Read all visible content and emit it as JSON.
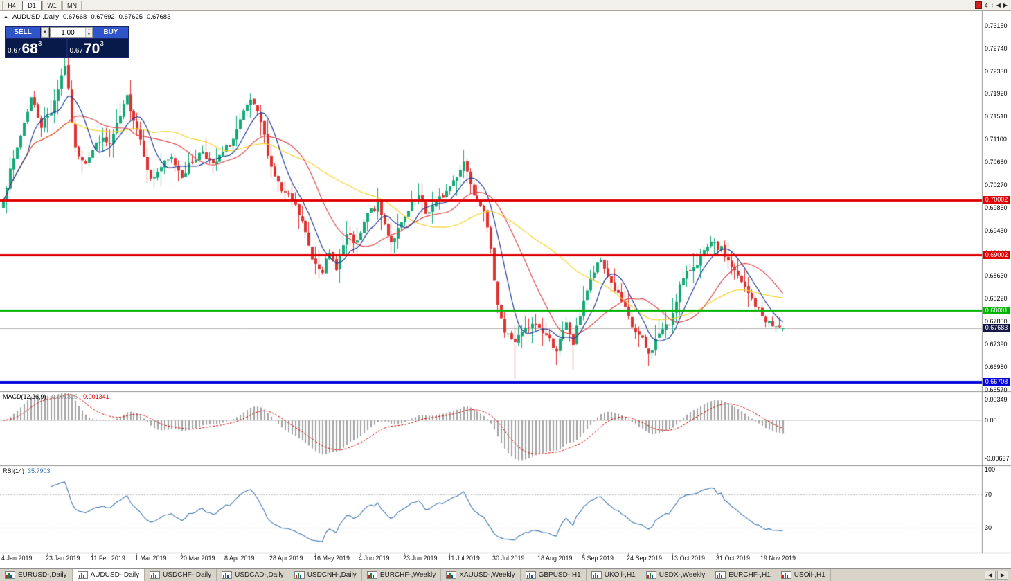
{
  "toolbar": {
    "timeframes": [
      {
        "label": "H4",
        "active": false
      },
      {
        "label": "D1",
        "active": true
      },
      {
        "label": "W1",
        "active": false
      },
      {
        "label": "MN",
        "active": false
      }
    ],
    "right_controls": {
      "bars_count": "4",
      "up_down": "↕",
      "left": "◀",
      "right": "▶"
    }
  },
  "trade_panel": {
    "sell_label": "SELL",
    "buy_label": "BUY",
    "volume": "1.00",
    "icons": {
      "dropdown": "▼",
      "spin_up": "▲",
      "spin_down": "▼"
    },
    "sell_price": {
      "prefix": "0.67",
      "big": "68",
      "sup": "3"
    },
    "buy_price": {
      "prefix": "0.67",
      "big": "70",
      "sup": "3"
    }
  },
  "chart": {
    "title": {
      "indicator_arrow": "▲",
      "symbol": "AUDUSD-,Daily",
      "open": "0.67668",
      "high": "0.67692",
      "low": "0.67625",
      "close": "0.67683"
    },
    "price_scale_labels": [
      "0.73150",
      "0.72740",
      "0.72330",
      "0.71920",
      "0.71510",
      "0.71100",
      "0.70680",
      "0.70270",
      "0.69860",
      "0.69450",
      "0.69040",
      "0.68630",
      "0.68220",
      "0.67800",
      "0.67390",
      "0.66980",
      "0.66570"
    ],
    "current_price": {
      "label": "0.67683",
      "price": 0.67683,
      "badge_color": "#11173f"
    },
    "hlines": [
      {
        "price": 0.70002,
        "label": "0.70002",
        "color": "#e00000",
        "width": 3
      },
      {
        "price": 0.69002,
        "label": "0.69002",
        "color": "#e00000",
        "width": 3
      },
      {
        "price": 0.68001,
        "label": "0.68001",
        "color": "#00b400",
        "width": 3
      },
      {
        "price": 0.66708,
        "label": "0.66708",
        "color": "#0000dc",
        "width": 4
      }
    ],
    "date_labels": [
      "4 Jan 2019",
      "23 Jan 2019",
      "11 Feb 2019",
      "1 Mar 2019",
      "20 Mar 2019",
      "8 Apr 2019",
      "28 Apr 2019",
      "16 May 2019",
      "4 Jun 2019",
      "23 Jun 2019",
      "11 Jul 2019",
      "30 Jul 2019",
      "18 Aug 2019",
      "5 Sep 2019",
      "24 Sep 2019",
      "13 Oct 2019",
      "31 Oct 2019",
      "19 Nov 2019"
    ]
  },
  "macd": {
    "name": "MACD(12,26,9)",
    "value_main": "-0.001825",
    "value_signal": "-0.001341",
    "scale_labels": [
      "0.00349",
      "0.00",
      "-0.00637"
    ]
  },
  "rsi": {
    "name": "RSI(14)",
    "value": "35.7903",
    "scale_labels": [
      "100",
      "70",
      "30"
    ]
  },
  "tabs": {
    "items": [
      {
        "label": "EURUSD-,Daily",
        "active": false
      },
      {
        "label": "AUDUSD-,Daily",
        "active": true
      },
      {
        "label": "USDCHF-,Daily",
        "active": false
      },
      {
        "label": "USDCAD-,Daily",
        "active": false
      },
      {
        "label": "USDCNH-,Daily",
        "active": false
      },
      {
        "label": "EURCHF-,Weekly",
        "active": false
      },
      {
        "label": "XAUUSD-,Weekly",
        "active": false
      },
      {
        "label": "GBPUSD-,H1",
        "active": false
      },
      {
        "label": "UKOil-,H1",
        "active": false
      },
      {
        "label": "USDX-,Weekly",
        "active": false
      },
      {
        "label": "EURCHF-,H1",
        "active": false
      },
      {
        "label": "USOil-,H1",
        "active": false
      }
    ],
    "scroll_left": "◀",
    "scroll_right": "▶"
  },
  "chart_data": {
    "type": "candlestick",
    "symbol": "AUDUSD",
    "timeframe": "Daily",
    "bars": 228,
    "seed": 7,
    "noise": 0.0014,
    "wick": 0.0028,
    "bull_color": "#14a878",
    "bear_color": "#e03131",
    "price_axis": {
      "top": 0.7315,
      "bottom": 0.6657,
      "step": 0.0041
    },
    "close_anchors": [
      [
        0,
        0.7005
      ],
      [
        4,
        0.7095
      ],
      [
        8,
        0.7185
      ],
      [
        11,
        0.7135
      ],
      [
        14,
        0.716
      ],
      [
        18,
        0.7245
      ],
      [
        19,
        0.7195
      ],
      [
        21,
        0.709
      ],
      [
        24,
        0.707
      ],
      [
        28,
        0.711
      ],
      [
        31,
        0.71
      ],
      [
        34,
        0.715
      ],
      [
        36,
        0.7185
      ],
      [
        40,
        0.711
      ],
      [
        43,
        0.7035
      ],
      [
        46,
        0.706
      ],
      [
        49,
        0.7075
      ],
      [
        52,
        0.7045
      ],
      [
        55,
        0.707
      ],
      [
        58,
        0.709
      ],
      [
        61,
        0.706
      ],
      [
        64,
        0.7085
      ],
      [
        67,
        0.711
      ],
      [
        70,
        0.7155
      ],
      [
        72,
        0.718
      ],
      [
        75,
        0.714
      ],
      [
        78,
        0.706
      ],
      [
        81,
        0.7015
      ],
      [
        84,
        0.7
      ],
      [
        87,
        0.696
      ],
      [
        90,
        0.6895
      ],
      [
        93,
        0.6875
      ],
      [
        95,
        0.69
      ],
      [
        97,
        0.688
      ],
      [
        100,
        0.6935
      ],
      [
        103,
        0.692
      ],
      [
        106,
        0.6975
      ],
      [
        109,
        0.699
      ],
      [
        111,
        0.6955
      ],
      [
        113,
        0.6925
      ],
      [
        116,
        0.6955
      ],
      [
        119,
        0.699
      ],
      [
        121,
        0.7005
      ],
      [
        123,
        0.6975
      ],
      [
        126,
        0.6995
      ],
      [
        129,
        0.7015
      ],
      [
        132,
        0.7045
      ],
      [
        134,
        0.707
      ],
      [
        137,
        0.7015
      ],
      [
        140,
        0.6985
      ],
      [
        142,
        0.6905
      ],
      [
        144,
        0.6815
      ],
      [
        146,
        0.676
      ],
      [
        149,
        0.6745
      ],
      [
        152,
        0.6765
      ],
      [
        155,
        0.6775
      ],
      [
        158,
        0.6755
      ],
      [
        161,
        0.673
      ],
      [
        164,
        0.6775
      ],
      [
        166,
        0.674
      ],
      [
        169,
        0.682
      ],
      [
        172,
        0.687
      ],
      [
        174,
        0.689
      ],
      [
        177,
        0.685
      ],
      [
        180,
        0.6815
      ],
      [
        183,
        0.677
      ],
      [
        186,
        0.6745
      ],
      [
        188,
        0.672
      ],
      [
        191,
        0.676
      ],
      [
        194,
        0.6775
      ],
      [
        197,
        0.6845
      ],
      [
        200,
        0.6875
      ],
      [
        203,
        0.6895
      ],
      [
        206,
        0.692
      ],
      [
        209,
        0.691
      ],
      [
        212,
        0.688
      ],
      [
        215,
        0.685
      ],
      [
        218,
        0.682
      ],
      [
        221,
        0.679
      ],
      [
        224,
        0.6772
      ],
      [
        227,
        0.6768
      ]
    ],
    "wick_overrides": [
      [
        18,
        "high",
        0.726
      ],
      [
        149,
        "low",
        0.6676
      ],
      [
        166,
        "low",
        0.6693
      ],
      [
        188,
        "low",
        0.67
      ]
    ],
    "last_bar": {
      "o": 0.67668,
      "h": 0.67692,
      "l": 0.67625,
      "c": 0.67683
    },
    "moving_averages": [
      {
        "period": 45,
        "color": "#f5d327"
      },
      {
        "period": 20,
        "color": "#e04848"
      },
      {
        "period": 8,
        "color": "#203a96"
      }
    ],
    "indicators": {
      "macd": {
        "fast": 12,
        "slow": 26,
        "signal": 9
      },
      "rsi": {
        "period": 14
      }
    },
    "tick_every": 13
  }
}
